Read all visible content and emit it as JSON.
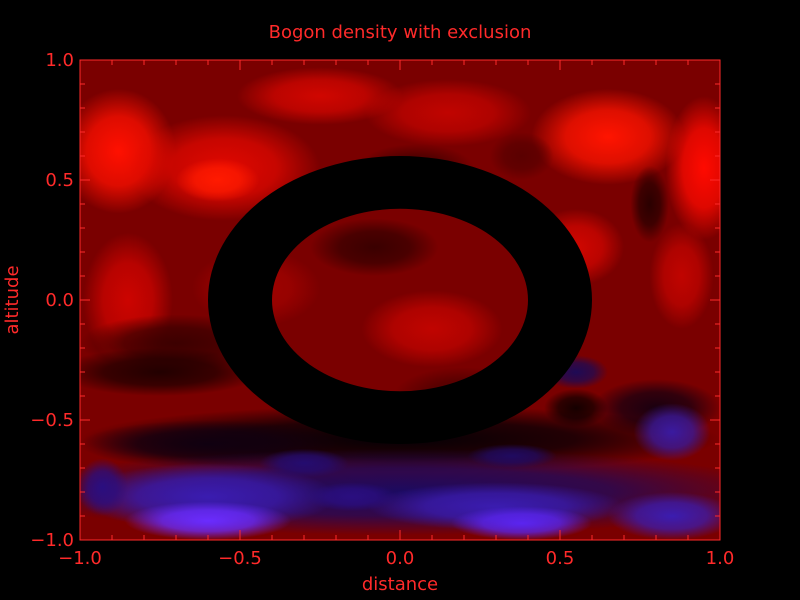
{
  "chart_data": {
    "type": "heatmap",
    "title": "Bogon density with exclusion",
    "xlabel": "distance",
    "ylabel": "altitude",
    "xlim": [
      -1.0,
      1.0
    ],
    "ylim": [
      -1.0,
      1.0
    ],
    "xticks": [
      -1.0,
      -0.5,
      0.0,
      0.5,
      1.0
    ],
    "yticks": [
      -1.0,
      -0.5,
      0.0,
      0.5,
      1.0
    ],
    "xtick_labels": [
      "−1.0",
      "−0.5",
      "0.0",
      "0.5",
      "1.0"
    ],
    "ytick_labels": [
      "−1.0",
      "−0.5",
      "0.0",
      "0.5",
      "1.0"
    ],
    "minor_ticks_per_major": 5,
    "colormap": {
      "low": "#6a2cff",
      "mid": "#000000",
      "high": "#ff0a00"
    },
    "contour_levels": 16,
    "exclusion_ring": {
      "center": [
        0.0,
        0.0
      ],
      "inner_radius": [
        0.4,
        0.38
      ],
      "outer_radius": [
        0.6,
        0.6
      ],
      "color": "#000000"
    },
    "axis_color": "#ff2a2a",
    "grid": false
  }
}
